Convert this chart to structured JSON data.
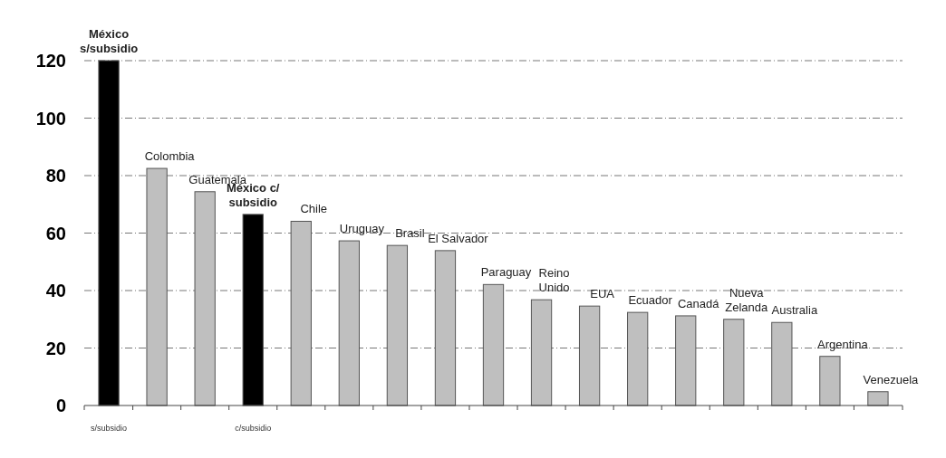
{
  "chart_data": {
    "type": "bar",
    "categories": [
      "s/subsidio",
      null,
      null,
      "c/subsidio",
      null,
      null,
      null,
      null,
      null,
      null,
      null,
      null,
      null,
      null,
      null,
      null,
      null
    ],
    "values": [
      120,
      82.5,
      74.4,
      66.5,
      64.1,
      57.3,
      55.7,
      53.9,
      42.1,
      36.8,
      34.6,
      32.4,
      31.2,
      30.0,
      28.9,
      17.1,
      4.8
    ],
    "colors": [
      "#000000",
      "#bfbfbf",
      "#bfbfbf",
      "#000000",
      "#bfbfbf",
      "#bfbfbf",
      "#bfbfbf",
      "#bfbfbf",
      "#bfbfbf",
      "#bfbfbf",
      "#bfbfbf",
      "#bfbfbf",
      "#bfbfbf",
      "#bfbfbf",
      "#bfbfbf",
      "#bfbfbf",
      "#bfbfbf"
    ],
    "value_labels": [
      "México\ns/subsidio",
      "Colombia",
      "Guatemala",
      "México c/\nsubsidio",
      "Chile",
      "Uruguay",
      "Brasil",
      "El Salvador",
      "Paraguay",
      "Reino\nUnido",
      "EUA",
      "Ecuador",
      "Canadá",
      "Nueva\nZelanda",
      "Australia",
      "Argentina",
      "Venezuela"
    ],
    "ylim": [
      0,
      120
    ],
    "yticks": [
      0,
      20,
      40,
      60,
      80,
      100,
      120
    ],
    "grid": "y"
  }
}
